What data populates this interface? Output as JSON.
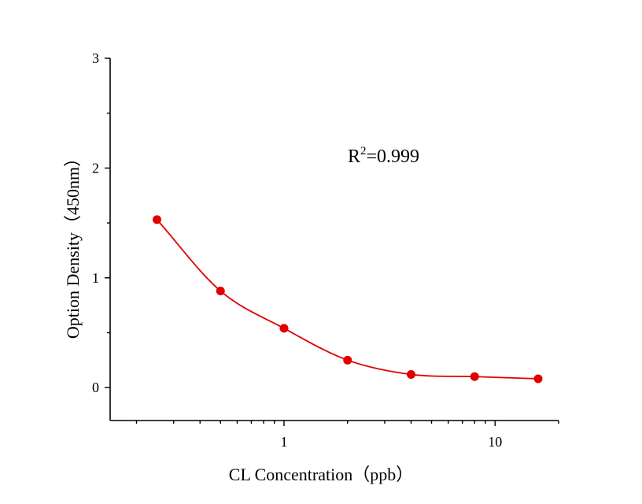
{
  "chart_data": {
    "type": "scatter",
    "title": "",
    "xlabel": "CL  Concentration（ppb）",
    "ylabel": "Option Density（450nm）",
    "x_scale": "log",
    "xlim": [
      0.15,
      20
    ],
    "ylim": [
      -0.3,
      3
    ],
    "x_ticks": [
      1,
      10
    ],
    "x_tick_labels": [
      "1",
      "10"
    ],
    "y_ticks": [
      0,
      1,
      2,
      3
    ],
    "y_tick_labels": [
      "0",
      "1",
      "2",
      "3"
    ],
    "annotation": {
      "prefix": "R",
      "superscript": "2",
      "value": "=0.999"
    },
    "grid": false,
    "colors": {
      "series": "#e00000",
      "axis": "#000000"
    },
    "series": [
      {
        "x": [
          0.25,
          0.5,
          1,
          2,
          4,
          8,
          16
        ],
        "y": [
          1.53,
          0.88,
          0.54,
          0.25,
          0.12,
          0.1,
          0.08
        ]
      }
    ]
  }
}
